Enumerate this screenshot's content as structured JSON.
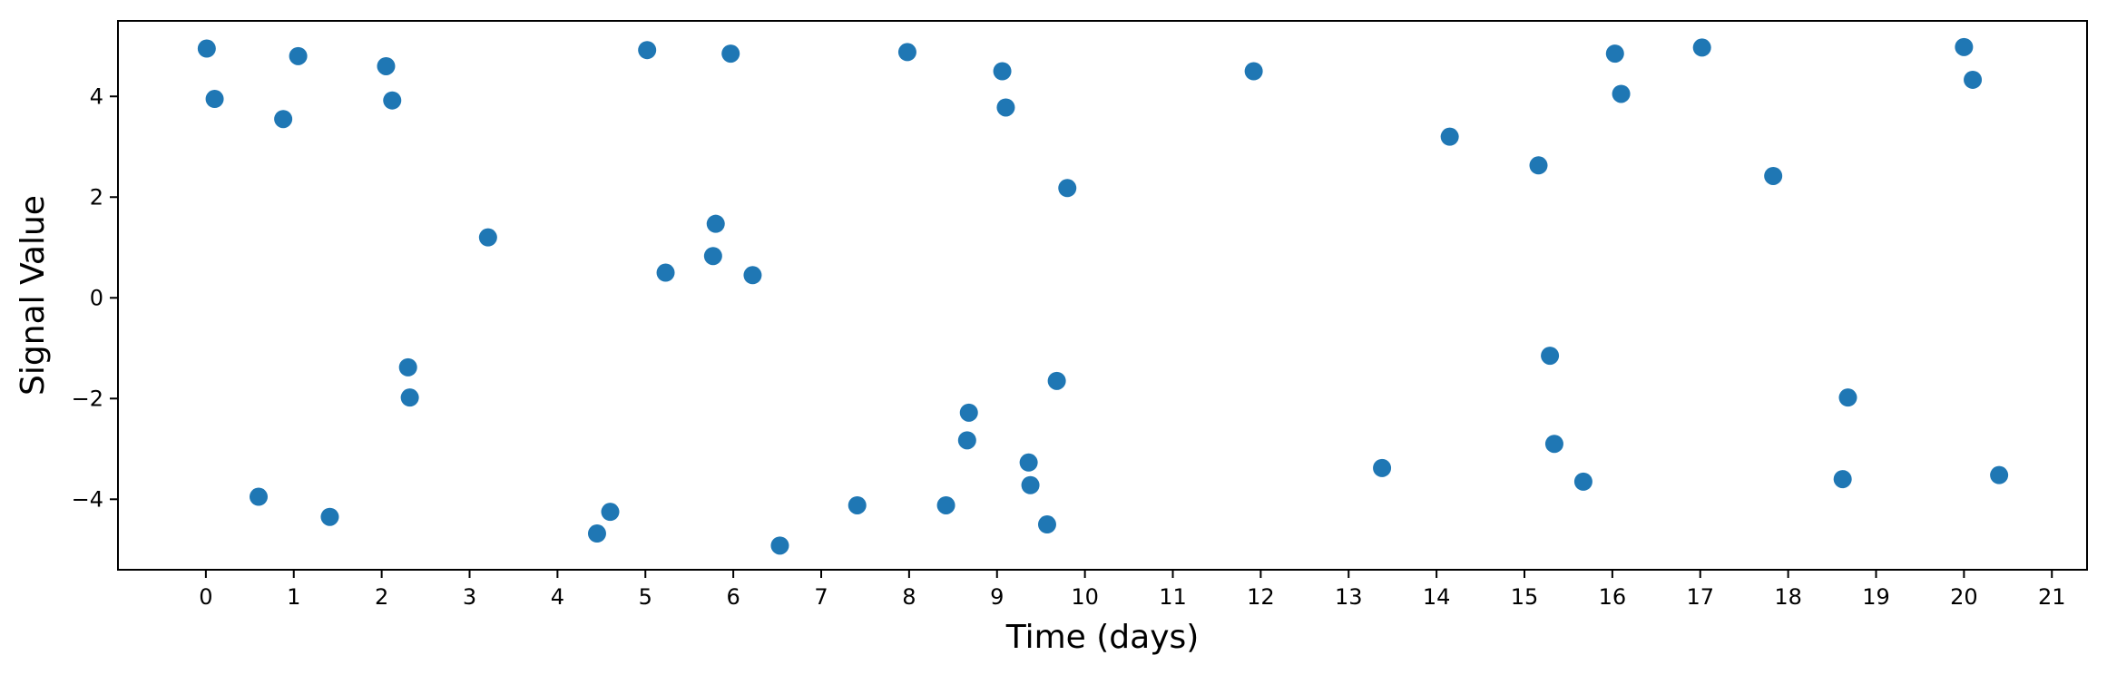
{
  "chart_data": {
    "type": "scatter",
    "title": "",
    "xlabel": "Time (days)",
    "ylabel": "Signal Value",
    "xlim": [
      -1,
      21.4
    ],
    "ylim": [
      -5.4,
      5.5
    ],
    "xticks": [
      0,
      1,
      2,
      3,
      4,
      5,
      6,
      7,
      8,
      9,
      10,
      11,
      12,
      13,
      14,
      15,
      16,
      17,
      18,
      19,
      20,
      21
    ],
    "yticks": [
      -4,
      -2,
      0,
      2,
      4
    ],
    "ytick_labels": [
      "−4",
      "−2",
      "0",
      "2",
      "4"
    ],
    "grid": false,
    "marker_color": "#1f77b4",
    "series": [
      {
        "x": [
          0.01,
          0.1,
          0.6,
          0.88,
          1.05,
          1.41,
          2.05,
          2.12,
          2.3,
          2.32,
          3.21,
          4.45,
          4.6,
          5.02,
          5.23,
          5.77,
          5.8,
          5.97,
          6.22,
          6.53,
          7.41,
          7.98,
          8.42,
          8.66,
          8.68,
          9.06,
          9.1,
          9.36,
          9.38,
          9.57,
          9.68,
          9.8,
          11.92,
          13.38,
          14.15,
          15.16,
          15.29,
          15.34,
          15.67,
          16.03,
          16.1,
          17.02,
          17.83,
          18.62,
          18.68,
          20.0,
          20.1,
          20.4
        ],
        "y": [
          4.95,
          3.95,
          -3.95,
          3.55,
          4.8,
          -4.35,
          4.6,
          3.92,
          -1.38,
          -1.98,
          1.2,
          -4.68,
          -4.25,
          4.92,
          0.5,
          0.83,
          1.47,
          4.85,
          0.45,
          -4.92,
          -4.12,
          4.88,
          -4.12,
          -2.83,
          -2.28,
          4.5,
          3.78,
          -3.27,
          -3.72,
          -4.5,
          -1.65,
          2.18,
          4.5,
          -3.38,
          3.2,
          2.63,
          -1.15,
          -2.9,
          -3.65,
          4.85,
          4.05,
          4.97,
          2.42,
          -3.6,
          -1.98,
          4.98,
          4.33,
          -3.52
        ]
      }
    ]
  }
}
